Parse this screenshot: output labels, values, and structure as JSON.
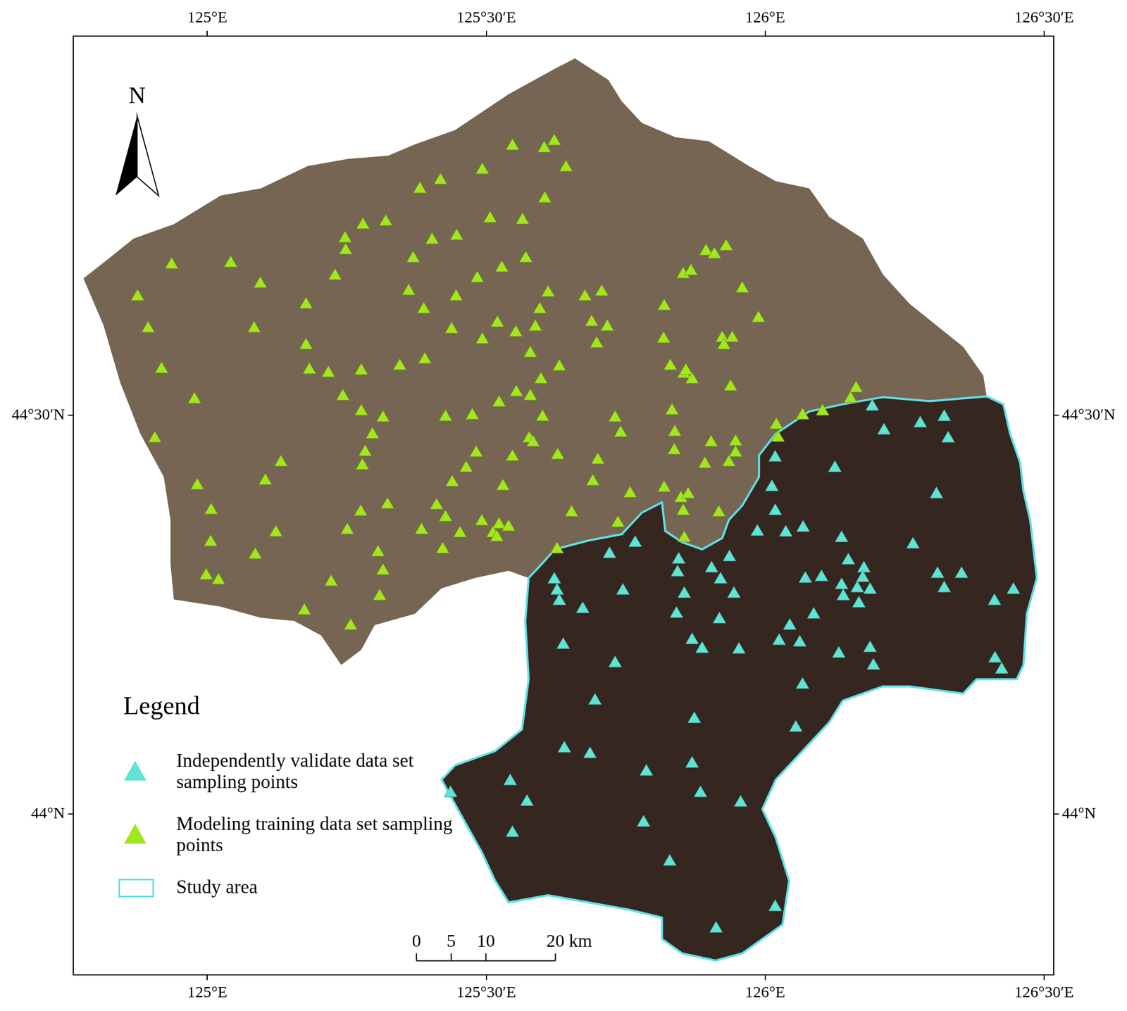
{
  "chart_data": {
    "type": "scatter",
    "xlim": [
      124.76,
      126.517
    ],
    "ylim": [
      43.798,
      44.976
    ],
    "xticks": [
      {
        "value": 125,
        "label": "125°E"
      },
      {
        "value": 125.5,
        "label": "125°30′E"
      },
      {
        "value": 126,
        "label": "126°E"
      },
      {
        "value": 126.5,
        "label": "126°30′E"
      }
    ],
    "yticks": [
      {
        "value": 44,
        "label": "44°N"
      },
      {
        "value": 44.5,
        "label": "44°30′N"
      }
    ],
    "grid": false,
    "legend": "lower left",
    "legend_title": "Legend",
    "north_arrow": "N",
    "scale_bar": {
      "values": [
        0,
        5,
        10,
        20
      ],
      "labels": [
        "0",
        "5",
        "10",
        "20 km"
      ]
    },
    "region": {
      "x": [
        126.397,
        126.427,
        126.439,
        126.457,
        126.463,
        126.475,
        126.487,
        126.469,
        126.463,
        126.451,
        126.379,
        126.355,
        126.259,
        126.211,
        126.139,
        126.115,
        126.067,
        126.019,
        125.995,
        126.019,
        126.031,
        126.043,
        126.031,
        125.995,
        125.959,
        125.911,
        125.851,
        125.815,
        125.815,
        125.755,
        125.683,
        125.611,
        125.54,
        125.516,
        125.492,
        125.456,
        125.42,
        125.444,
        125.516,
        125.564,
        125.576,
        125.57,
        125.576,
        125.54,
        125.48,
        125.42,
        125.372,
        125.3,
        125.276,
        125.24,
        125.204,
        125.156,
        125.096,
        125.024,
        124.94,
        124.934,
        124.934,
        124.922,
        124.88,
        124.844,
        124.814,
        124.778,
        124.82,
        124.868,
        124.94,
        125.024,
        125.096,
        125.18,
        125.252,
        125.324,
        125.372,
        125.444,
        125.54,
        125.623,
        125.659,
        125.719,
        125.743,
        125.779,
        125.839,
        125.899,
        125.971,
        126.019,
        126.079,
        126.115,
        126.175,
        126.211,
        126.259,
        126.355,
        126.391
      ],
      "y": [
        44.524,
        44.514,
        44.477,
        44.441,
        44.405,
        44.369,
        44.296,
        44.251,
        44.187,
        44.169,
        44.169,
        44.151,
        44.16,
        44.16,
        44.142,
        44.115,
        44.079,
        44.043,
        44.006,
        43.97,
        43.943,
        43.916,
        43.861,
        43.843,
        43.825,
        43.816,
        43.825,
        43.843,
        43.87,
        43.88,
        43.889,
        43.898,
        43.889,
        43.916,
        43.952,
        43.997,
        44.043,
        44.061,
        44.079,
        44.106,
        44.169,
        44.242,
        44.296,
        44.305,
        44.296,
        44.283,
        44.251,
        44.237,
        44.206,
        44.187,
        44.224,
        44.242,
        44.246,
        44.26,
        44.269,
        44.314,
        44.369,
        44.423,
        44.477,
        44.541,
        44.613,
        44.672,
        44.695,
        44.722,
        44.74,
        44.776,
        44.785,
        44.813,
        44.822,
        44.826,
        44.84,
        44.858,
        44.903,
        44.935,
        44.948,
        44.921,
        44.894,
        44.867,
        44.849,
        44.844,
        44.813,
        44.794,
        44.785,
        44.749,
        44.722,
        44.677,
        44.64,
        44.586,
        44.55
      ]
    },
    "series": [
      {
        "name": "Independently validate data set sampling points",
        "color": "#5fe3d5",
        "marker": "triangle",
        "x": [
          126.192,
          126.213,
          126.278,
          126.321,
          126.328,
          126.018,
          126.125,
          126.012,
          126.307,
          126.018,
          125.986,
          126.037,
          126.068,
          126.137,
          126.265,
          126.149,
          126.177,
          126.175,
          126.072,
          126.101,
          126.137,
          126.14,
          126.165,
          126.188,
          126.168,
          126.309,
          126.321,
          126.352,
          126.411,
          126.445,
          126.087,
          126.044,
          126.025,
          126.062,
          126.132,
          126.188,
          126.194,
          126.412,
          126.424,
          126.067,
          126.055,
          125.721,
          125.767,
          125.622,
          125.627,
          125.631,
          125.673,
          125.745,
          125.845,
          125.843,
          125.855,
          125.841,
          125.904,
          125.92,
          125.936,
          125.944,
          125.918,
          125.869,
          125.887,
          125.953,
          125.638,
          125.731,
          125.695,
          125.873,
          125.956,
          125.64,
          125.686,
          125.869,
          125.884,
          125.787,
          125.782,
          125.543,
          125.573,
          125.436,
          125.547,
          125.829,
          126.018,
          125.912
        ],
        "y": [
          44.511,
          44.481,
          44.49,
          44.498,
          44.471,
          44.447,
          44.434,
          44.41,
          44.401,
          44.38,
          44.354,
          44.353,
          44.359,
          44.346,
          44.338,
          44.318,
          44.308,
          44.296,
          44.295,
          44.297,
          44.287,
          44.273,
          44.283,
          44.281,
          44.264,
          44.301,
          44.283,
          44.301,
          44.267,
          44.281,
          44.25,
          44.236,
          44.217,
          44.215,
          44.201,
          44.208,
          44.186,
          44.195,
          44.181,
          44.162,
          44.108,
          44.326,
          44.34,
          44.294,
          44.28,
          44.267,
          44.257,
          44.28,
          44.319,
          44.303,
          44.276,
          44.251,
          44.308,
          44.294,
          44.322,
          44.276,
          44.244,
          44.218,
          44.207,
          44.206,
          44.212,
          44.189,
          44.142,
          44.119,
          44.014,
          44.082,
          44.075,
          44.063,
          44.026,
          44.053,
          43.989,
          44.041,
          44.015,
          44.026,
          43.976,
          43.94,
          43.883,
          43.856
        ]
      },
      {
        "name": "Modeling training data set sampling points",
        "color": "#a2e61e",
        "marker": "triangle",
        "x": [
          125.547,
          125.604,
          125.622,
          125.643,
          125.493,
          125.418,
          125.381,
          125.605,
          125.507,
          125.565,
          125.32,
          125.279,
          125.247,
          125.248,
          125.447,
          125.403,
          125.571,
          125.369,
          125.528,
          125.229,
          125.484,
          124.936,
          125.042,
          125.095,
          124.875,
          124.894,
          125.177,
          125.361,
          125.446,
          125.388,
          125.611,
          125.596,
          125.588,
          125.677,
          125.707,
          125.689,
          125.717,
          125.698,
          125.52,
          125.553,
          125.493,
          125.438,
          125.579,
          125.177,
          125.183,
          125.217,
          125.276,
          125.345,
          125.39,
          125.084,
          124.918,
          124.977,
          125.243,
          125.276,
          125.315,
          125.296,
          125.283,
          125.278,
          125.427,
          125.475,
          125.523,
          125.554,
          125.579,
          125.601,
          125.631,
          125.598,
          125.547,
          125.482,
          125.464,
          125.439,
          125.577,
          125.584,
          125.628,
          125.7,
          125.691,
          125.53,
          125.132,
          125.104,
          124.982,
          125.007,
          125.006,
          125.123,
          125.086,
          124.906,
          124.998,
          125.02,
          125.251,
          125.275,
          125.323,
          125.306,
          125.315,
          125.309,
          125.222,
          125.257,
          125.174,
          125.384,
          125.411,
          125.427,
          125.453,
          125.422,
          125.492,
          125.523,
          125.512,
          125.54,
          125.519,
          125.653,
          125.758,
          125.736,
          125.627,
          125.731,
          125.741,
          125.894,
          125.909,
          125.93,
          125.853,
          125.867,
          125.959,
          125.988,
          125.819,
          125.818,
          125.923,
          125.941,
          125.926,
          125.83,
          125.854,
          125.869,
          125.858,
          125.938,
          125.833,
          125.838,
          125.837,
          125.903,
          125.892,
          125.947,
          125.947,
          125.935,
          126.02,
          126.023,
          126.067,
          126.103,
          126.163,
          126.153,
          125.819,
          125.849,
          125.862,
          125.853,
          125.855,
          125.917
        ],
        "y": [
          44.838,
          44.835,
          44.844,
          44.811,
          44.808,
          44.795,
          44.784,
          44.772,
          44.747,
          44.745,
          44.743,
          44.739,
          44.722,
          44.707,
          44.725,
          44.72,
          44.697,
          44.697,
          44.685,
          44.675,
          44.672,
          44.689,
          44.691,
          44.665,
          44.649,
          44.609,
          44.639,
          44.656,
          44.649,
          44.633,
          44.654,
          44.633,
          44.611,
          44.649,
          44.655,
          44.617,
          44.611,
          44.59,
          44.616,
          44.604,
          44.595,
          44.608,
          44.578,
          44.588,
          44.557,
          44.553,
          44.556,
          44.562,
          44.57,
          44.609,
          44.558,
          44.52,
          44.524,
          44.505,
          44.497,
          44.476,
          44.454,
          44.437,
          44.498,
          44.5,
          44.516,
          44.529,
          44.524,
          44.498,
          44.561,
          44.545,
          44.448,
          44.453,
          44.434,
          44.416,
          44.471,
          44.466,
          44.45,
          44.444,
          44.417,
          44.411,
          44.441,
          44.418,
          44.412,
          44.381,
          44.341,
          44.353,
          44.325,
          44.471,
          44.299,
          44.293,
          44.356,
          44.379,
          44.388,
          44.328,
          44.305,
          44.273,
          44.291,
          44.236,
          44.255,
          44.356,
          44.387,
          44.372,
          44.352,
          44.332,
          44.367,
          44.363,
          44.352,
          44.36,
          44.347,
          44.378,
          44.402,
          44.365,
          44.332,
          44.497,
          44.478,
          44.706,
          44.702,
          44.712,
          44.677,
          44.681,
          44.659,
          44.622,
          44.637,
          44.596,
          44.597,
          44.597,
          44.588,
          44.562,
          44.552,
          44.545,
          44.556,
          44.536,
          44.506,
          44.479,
          44.456,
          44.466,
          44.439,
          44.467,
          44.453,
          44.441,
          44.488,
          44.472,
          44.5,
          44.505,
          44.534,
          44.521,
          44.409,
          44.396,
          44.401,
          44.38,
          44.346,
          44.378
        ]
      },
      {
        "name": "Study area",
        "type": "polygon",
        "color": "#5fe0e6",
        "x": [
          126.397,
          126.427,
          126.439,
          126.457,
          126.463,
          126.475,
          126.487,
          126.469,
          126.463,
          126.451,
          126.379,
          126.355,
          126.259,
          126.211,
          126.139,
          126.115,
          126.067,
          126.019,
          125.995,
          126.019,
          126.031,
          126.043,
          126.031,
          125.995,
          125.959,
          125.911,
          125.851,
          125.815,
          125.815,
          125.755,
          125.683,
          125.611,
          125.54,
          125.516,
          125.492,
          125.456,
          125.42,
          125.444,
          125.516,
          125.564,
          125.576,
          125.57,
          125.576,
          125.6,
          125.623,
          125.683,
          125.743,
          125.779,
          125.815,
          125.821,
          125.851,
          125.887,
          125.923,
          125.935,
          125.959,
          125.989,
          125.989,
          126.019,
          126.079,
          126.139,
          126.211,
          126.295
        ],
        "y": [
          44.524,
          44.514,
          44.477,
          44.441,
          44.405,
          44.369,
          44.296,
          44.251,
          44.187,
          44.169,
          44.169,
          44.151,
          44.16,
          44.16,
          44.142,
          44.115,
          44.079,
          44.043,
          44.006,
          43.97,
          43.943,
          43.916,
          43.861,
          43.843,
          43.825,
          43.816,
          43.825,
          43.843,
          43.87,
          43.88,
          43.889,
          43.898,
          43.889,
          43.916,
          43.952,
          43.997,
          44.043,
          44.061,
          44.079,
          44.106,
          44.169,
          44.242,
          44.296,
          44.314,
          44.332,
          44.343,
          44.351,
          44.378,
          44.391,
          44.355,
          44.341,
          44.332,
          44.346,
          44.369,
          44.387,
          44.423,
          44.45,
          44.477,
          44.505,
          44.514,
          44.523,
          44.518
        ]
      }
    ]
  }
}
